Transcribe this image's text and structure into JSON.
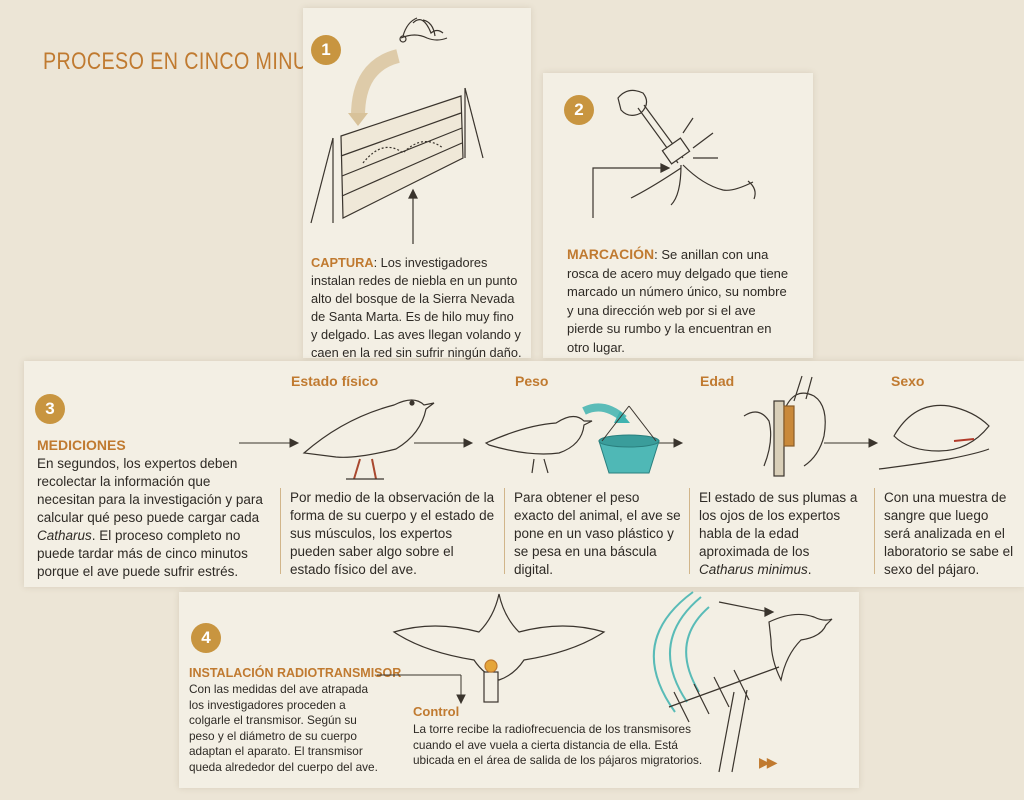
{
  "title": "PROCESO EN CINCO MINUTOS",
  "steps": {
    "captura": {
      "number": "1",
      "heading": "CAPTURA",
      "text": ": Los investigadores instalan redes de niebla en un punto alto del bosque de la Sierra Nevada de Santa Marta. Es de hilo muy fino y delgado. Las aves llegan volando y caen en la red sin sufrir ningún daño."
    },
    "marcacion": {
      "number": "2",
      "heading": "MARCACIÓN",
      "text": ": Se anillan con una rosca de acero muy delgado que tiene marcado un número único, su nombre y una dirección web por si el ave pierde su rumbo y la encuentran en otro lugar."
    },
    "mediciones": {
      "number": "3",
      "heading": "MEDICIONES",
      "text_before": "En segundos, los expertos deben recolectar la información que necesitan para la investigación y para calcular qué peso puede cargar cada ",
      "text_italic": "Catharus",
      "text_after": ". El proceso completo no puede tardar más de cinco minutos porque el ave puede sufrir estrés.",
      "sub": [
        {
          "label": "Estado físico",
          "text": "Por medio de la observación de la forma de su cuerpo y el estado de sus músculos, los expertos pueden saber algo sobre el estado físico del ave."
        },
        {
          "label": "Peso",
          "text": "Para obtener el peso exacto del animal, el ave se pone en un vaso plástico y se pesa en una báscula digital."
        },
        {
          "label": "Edad",
          "text_before": "El estado de sus plumas a los ojos de los expertos habla de la edad aproximada de los ",
          "text_italic": "Catharus minimus",
          "text_after": "."
        },
        {
          "label": "Sexo",
          "text": "Con una muestra de sangre que luego será analizada en el laboratorio se sabe el sexo del pájaro."
        }
      ]
    },
    "instalacion": {
      "number": "4",
      "heading": "INSTALACIÓN RADIOTRANSMISOR",
      "text": "Con las medidas del ave atrapada los investigadores proceden a colgarle el transmisor. Según su peso y el diámetro de su cuerpo adaptan el aparato. El transmisor queda alrededor del cuerpo del ave."
    },
    "control": {
      "heading": "Control",
      "text": "La torre recibe la radiofrecuencia de los transmisores cuando el ave vuela a cierta distancia de ella. Está ubicada en el área de salida de los pájaros migratorios."
    }
  },
  "next_icon": "double-play-icon",
  "colors": {
    "accent": "#c07a30",
    "badge": "#c89540",
    "teal": "#3fb3b0"
  }
}
